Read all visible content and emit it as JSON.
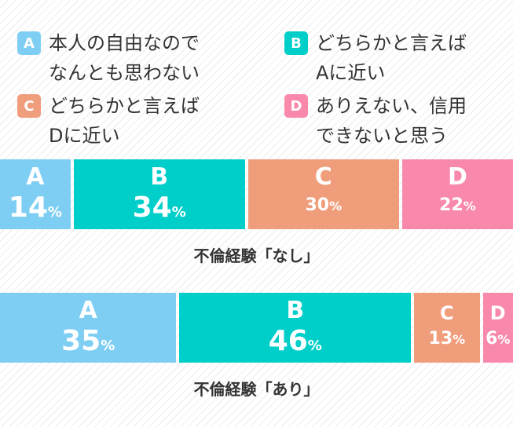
{
  "legend": [
    {
      "key": "A",
      "text": "本人の自由なので\nなんとも思わない",
      "color": "#7ecef4"
    },
    {
      "key": "B",
      "text": "どちらかと言えば\nAに近い",
      "color": "#00cec9"
    },
    {
      "key": "C",
      "text": "どちらかと言えば\nDに近い",
      "color": "#f09d7c"
    },
    {
      "key": "D",
      "text": "ありえない、信用\nできないと思う",
      "color": "#f889ab"
    }
  ],
  "chart_data": [
    {
      "type": "bar",
      "orientation": "horizontal-stacked",
      "label": "不倫経験「なし」",
      "categories": [
        "A",
        "B",
        "C",
        "D"
      ],
      "values": [
        14,
        34,
        30,
        22
      ],
      "unit": "%"
    },
    {
      "type": "bar",
      "orientation": "horizontal-stacked",
      "label": "不倫経験「あり」",
      "categories": [
        "A",
        "B",
        "C",
        "D"
      ],
      "values": [
        35,
        46,
        13,
        6
      ],
      "unit": "%"
    }
  ]
}
